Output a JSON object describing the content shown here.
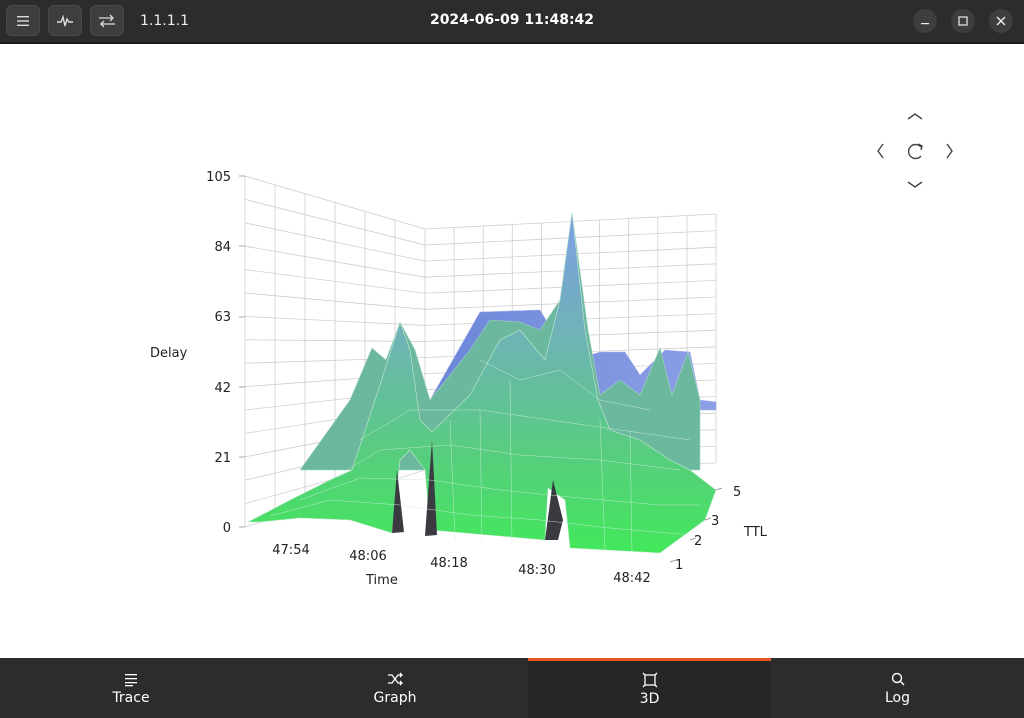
{
  "titlebar": {
    "host": "1.1.1.1",
    "title": "2024-06-09 11:48:42",
    "buttons": [
      "menu-icon",
      "trace-route-icon",
      "swap-icon"
    ],
    "window_controls": [
      "minimize-icon",
      "maximize-icon",
      "close-icon"
    ]
  },
  "chart": {
    "y_axis_label": "Delay",
    "x_axis_label": "Time",
    "z_axis_label": "TTL",
    "y_ticks": [
      "105",
      "84",
      "63",
      "42",
      "21",
      "0"
    ],
    "x_ticks": [
      "47:54",
      "48:06",
      "48:18",
      "48:30",
      "48:42"
    ],
    "z_ticks": [
      "5",
      "3",
      "2",
      "1"
    ],
    "nav_controls": [
      "up-arrow-icon",
      "left-arrow-icon",
      "reset-view-icon",
      "right-arrow-icon",
      "down-arrow-icon"
    ]
  },
  "chart_data": {
    "type": "area",
    "title": "",
    "xlabel": "Time",
    "ylabel": "Delay",
    "zlabel": "TTL",
    "ylim": [
      0,
      105
    ],
    "x_ticks": [
      "47:54",
      "48:06",
      "48:18",
      "48:30",
      "48:42"
    ],
    "z_ticks": [
      "1",
      "2",
      "3",
      "5"
    ],
    "grid": true
  },
  "tabs": [
    {
      "label": "Trace",
      "icon": "list-icon",
      "active": false
    },
    {
      "label": "Graph",
      "icon": "shuffle-icon",
      "active": false
    },
    {
      "label": "3D",
      "icon": "cube-icon",
      "active": true
    },
    {
      "label": "Log",
      "icon": "search-icon",
      "active": false
    }
  ],
  "colors": {
    "accent": "#e95420",
    "surface_top": "#7aa0e0",
    "surface_bottom": "#44e060"
  }
}
